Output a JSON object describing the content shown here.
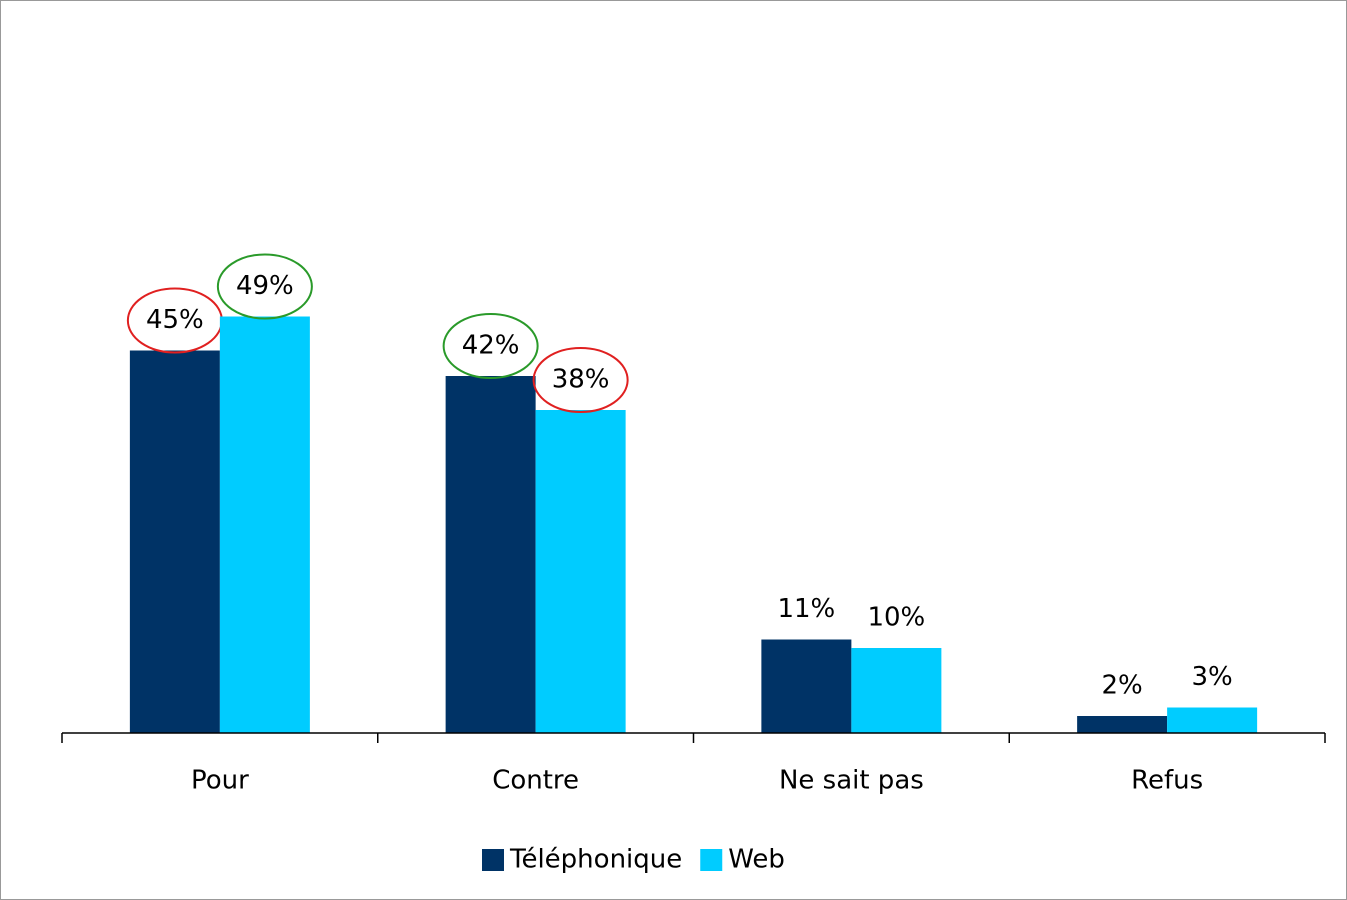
{
  "chart_data": {
    "type": "bar",
    "categories": [
      "Pour",
      "Contre",
      "Ne sait pas",
      "Refus"
    ],
    "series": [
      {
        "name": "Téléphonique",
        "color": "#003366",
        "values": [
          45,
          42,
          11,
          2
        ],
        "value_labels": [
          "45%",
          "42%",
          "11%",
          "2%"
        ],
        "highlights": [
          "#e02020",
          "#2a9a2a",
          null,
          null
        ]
      },
      {
        "name": "Web",
        "color": "#00ccff",
        "values": [
          49,
          38,
          10,
          3
        ],
        "value_labels": [
          "49%",
          "38%",
          "10%",
          "3%"
        ],
        "highlights": [
          "#2a9a2a",
          "#e02020",
          null,
          null
        ]
      }
    ],
    "ylim": [
      0,
      60
    ],
    "legend": "bottom"
  }
}
